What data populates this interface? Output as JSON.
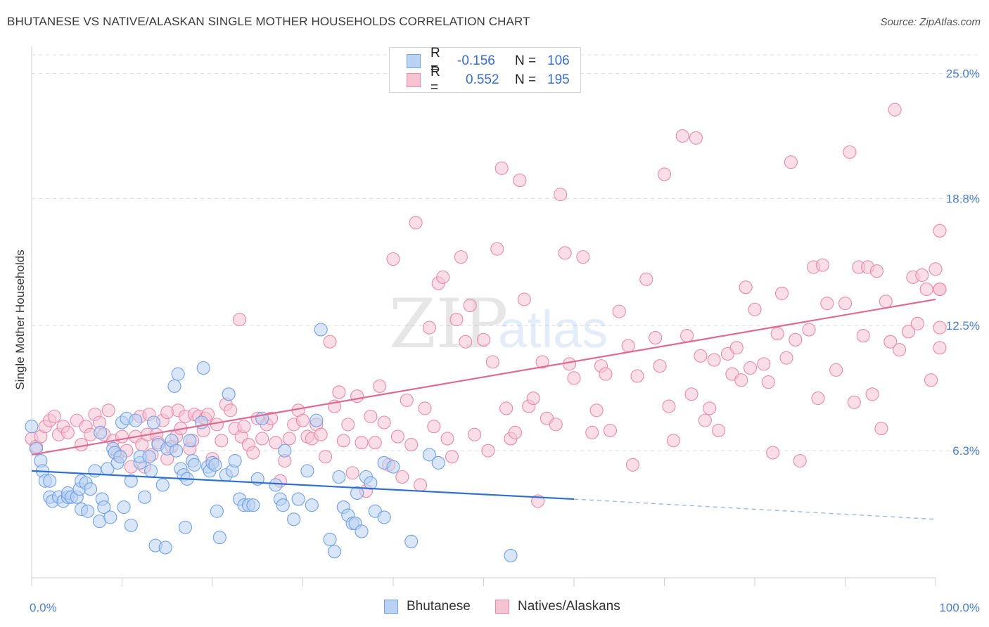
{
  "title": "BHUTANESE VS NATIVE/ALASKAN SINGLE MOTHER HOUSEHOLDS CORRELATION CHART",
  "source": "Source: ZipAtlas.com",
  "watermark": {
    "zip": "ZIP",
    "atlas": "atlas"
  },
  "legend": {
    "rows": [
      {
        "r_label": "R =",
        "r_value": "-0.156",
        "n_label": "N =",
        "n_value": "106",
        "color": "#6fa0e8",
        "fill": "#b9d1f3"
      },
      {
        "r_label": "R =",
        "r_value": "0.552",
        "n_label": "N =",
        "n_value": "195",
        "color": "#e88aa8",
        "fill": "#f6c3d3"
      }
    ]
  },
  "bottom_legend": {
    "series1": "Bhutanese",
    "series2": "Natives/Alaskans"
  },
  "chart_data": {
    "type": "scatter",
    "title": "BHUTANESE VS NATIVE/ALASKAN SINGLE MOTHER HOUSEHOLDS CORRELATION CHART",
    "xlabel": "",
    "ylabel": "Single Mother Households",
    "xlim": [
      0,
      100
    ],
    "ylim": [
      0,
      26.2
    ],
    "x_tick_labels": [
      "0.0%",
      "100.0%"
    ],
    "y_ticks": [
      6.3,
      12.5,
      18.8,
      25.0
    ],
    "y_tick_labels": [
      "6.3%",
      "12.5%",
      "18.8%",
      "25.0%"
    ],
    "grid": true,
    "legend_placement": "top-center",
    "series": [
      {
        "name": "Bhutanese",
        "color": "#6fa0e8",
        "fill": "#b9d1f3",
        "trend": {
          "x0": 0,
          "y0": 5.3,
          "x1": 60,
          "y1": 3.9,
          "dashed_to_x": 100,
          "dashed_to_y": 2.9
        },
        "points": [
          [
            0,
            7.5
          ],
          [
            0.5,
            6.4
          ],
          [
            1,
            5.8
          ],
          [
            1.2,
            5.3
          ],
          [
            1.5,
            4.8
          ],
          [
            2,
            4.8
          ],
          [
            2,
            4.0
          ],
          [
            2.3,
            3.8
          ],
          [
            3,
            4.0
          ],
          [
            3.5,
            3.8
          ],
          [
            4,
            4.0
          ],
          [
            4,
            4.2
          ],
          [
            4.4,
            4.0
          ],
          [
            5,
            4.0
          ],
          [
            5.3,
            4.4
          ],
          [
            5.5,
            3.4
          ],
          [
            5.5,
            4.8
          ],
          [
            6,
            4.7
          ],
          [
            6.2,
            3.3
          ],
          [
            6.5,
            4.4
          ],
          [
            7,
            5.3
          ],
          [
            7.5,
            2.8
          ],
          [
            7.6,
            7.2
          ],
          [
            7.8,
            3.9
          ],
          [
            8,
            3.5
          ],
          [
            8.4,
            5.4
          ],
          [
            8.7,
            3.0
          ],
          [
            9,
            6.4
          ],
          [
            9.2,
            6.2
          ],
          [
            9.5,
            5.7
          ],
          [
            9.8,
            6.0
          ],
          [
            10,
            7.7
          ],
          [
            10.2,
            3.5
          ],
          [
            10.5,
            7.9
          ],
          [
            11,
            2.6
          ],
          [
            11,
            4.8
          ],
          [
            11.5,
            7.8
          ],
          [
            12,
            5.7
          ],
          [
            12,
            6.0
          ],
          [
            12.5,
            4.0
          ],
          [
            13,
            6.0
          ],
          [
            13.2,
            5.3
          ],
          [
            13.5,
            7.7
          ],
          [
            13.7,
            1.6
          ],
          [
            14,
            6.6
          ],
          [
            14.5,
            4.6
          ],
          [
            14.8,
            1.5
          ],
          [
            15,
            6.4
          ],
          [
            15.5,
            6.8
          ],
          [
            15.8,
            9.5
          ],
          [
            16,
            6.3
          ],
          [
            16.2,
            10.1
          ],
          [
            16.5,
            5.4
          ],
          [
            16.8,
            5.1
          ],
          [
            17,
            2.5
          ],
          [
            17.2,
            4.9
          ],
          [
            17.5,
            6.8
          ],
          [
            17.8,
            5.8
          ],
          [
            18,
            5.6
          ],
          [
            18.8,
            7.7
          ],
          [
            19,
            10.4
          ],
          [
            19.5,
            5.5
          ],
          [
            19.7,
            5.3
          ],
          [
            20,
            5.7
          ],
          [
            20.3,
            5.6
          ],
          [
            20.5,
            3.3
          ],
          [
            20.8,
            2.0
          ],
          [
            21.5,
            5.1
          ],
          [
            21.8,
            9.1
          ],
          [
            22.2,
            5.3
          ],
          [
            22.5,
            5.8
          ],
          [
            23,
            3.9
          ],
          [
            23.5,
            3.6
          ],
          [
            24,
            3.6
          ],
          [
            24.5,
            3.6
          ],
          [
            25,
            4.9
          ],
          [
            25.5,
            7.9
          ],
          [
            27,
            4.6
          ],
          [
            27.5,
            3.9
          ],
          [
            27.8,
            3.6
          ],
          [
            28,
            6.3
          ],
          [
            29,
            2.9
          ],
          [
            29.5,
            3.9
          ],
          [
            30.5,
            5.3
          ],
          [
            31,
            3.6
          ],
          [
            31.5,
            7.8
          ],
          [
            32,
            12.3
          ],
          [
            33,
            1.9
          ],
          [
            33.5,
            1.3
          ],
          [
            34,
            5.0
          ],
          [
            34.5,
            3.5
          ],
          [
            35,
            3.1
          ],
          [
            35.5,
            2.7
          ],
          [
            35.8,
            2.7
          ],
          [
            36,
            4.2
          ],
          [
            36.5,
            2.3
          ],
          [
            37,
            5.0
          ],
          [
            37.5,
            4.7
          ],
          [
            38,
            3.3
          ],
          [
            39,
            3.0
          ],
          [
            39,
            5.7
          ],
          [
            40,
            5.5
          ],
          [
            42,
            1.8
          ],
          [
            44,
            6.1
          ],
          [
            45,
            5.7
          ],
          [
            53,
            1.1
          ]
        ]
      },
      {
        "name": "Natives/Alaskans",
        "color": "#e88aa8",
        "fill": "#f6c3d3",
        "trend": {
          "x0": 0,
          "y0": 6.1,
          "x1": 100,
          "y1": 13.8
        },
        "points": [
          [
            0,
            6.9
          ],
          [
            0.5,
            6.5
          ],
          [
            1,
            7.0
          ],
          [
            1.5,
            7.5
          ],
          [
            2,
            7.8
          ],
          [
            2.5,
            8.0
          ],
          [
            3,
            7.1
          ],
          [
            3.5,
            7.5
          ],
          [
            4,
            7.2
          ],
          [
            5,
            7.8
          ],
          [
            5.5,
            6.6
          ],
          [
            6,
            7.5
          ],
          [
            6.5,
            7.1
          ],
          [
            7,
            8.1
          ],
          [
            7.5,
            7.7
          ],
          [
            8,
            7.1
          ],
          [
            8.5,
            8.3
          ],
          [
            9,
            6.8
          ],
          [
            9.5,
            6.1
          ],
          [
            10,
            7.0
          ],
          [
            10.5,
            6.3
          ],
          [
            11,
            5.5
          ],
          [
            11.5,
            7.0
          ],
          [
            12,
            8.0
          ],
          [
            12.2,
            6.6
          ],
          [
            12.5,
            5.5
          ],
          [
            12.8,
            7.1
          ],
          [
            13,
            8.1
          ],
          [
            13.3,
            6.1
          ],
          [
            13.8,
            7.1
          ],
          [
            14,
            6.7
          ],
          [
            14.5,
            7.8
          ],
          [
            15,
            8.2
          ],
          [
            15,
            5.9
          ],
          [
            15.5,
            6.5
          ],
          [
            16,
            7.0
          ],
          [
            16.2,
            8.3
          ],
          [
            16.5,
            7.4
          ],
          [
            17,
            8.0
          ],
          [
            17.5,
            6.4
          ],
          [
            17.8,
            6.8
          ],
          [
            18,
            8.1
          ],
          [
            18.5,
            8.0
          ],
          [
            19,
            7.3
          ],
          [
            19.2,
            7.9
          ],
          [
            19.5,
            8.1
          ],
          [
            20,
            5.9
          ],
          [
            20.5,
            7.6
          ],
          [
            21,
            6.8
          ],
          [
            21.5,
            8.6
          ],
          [
            22,
            8.3
          ],
          [
            22.5,
            7.4
          ],
          [
            23,
            12.8
          ],
          [
            23.2,
            7.0
          ],
          [
            23.5,
            7.5
          ],
          [
            24,
            6.6
          ],
          [
            24.5,
            6.2
          ],
          [
            25,
            7.9
          ],
          [
            25.5,
            6.9
          ],
          [
            26,
            7.6
          ],
          [
            26.5,
            7.9
          ],
          [
            27,
            6.7
          ],
          [
            27.5,
            4.8
          ],
          [
            28,
            5.8
          ],
          [
            28.5,
            6.9
          ],
          [
            29,
            7.6
          ],
          [
            29.5,
            8.3
          ],
          [
            30,
            7.8
          ],
          [
            30.5,
            7.0
          ],
          [
            31,
            6.9
          ],
          [
            31.5,
            7.6
          ],
          [
            32,
            7.1
          ],
          [
            32.5,
            6.0
          ],
          [
            33,
            11.7
          ],
          [
            33.5,
            8.5
          ],
          [
            34,
            9.2
          ],
          [
            34.5,
            6.8
          ],
          [
            35,
            7.6
          ],
          [
            35.5,
            5.2
          ],
          [
            36,
            9.0
          ],
          [
            36.5,
            6.7
          ],
          [
            37,
            4.3
          ],
          [
            37.5,
            8.0
          ],
          [
            38,
            6.7
          ],
          [
            38.5,
            9.5
          ],
          [
            39,
            7.7
          ],
          [
            39.5,
            5.6
          ],
          [
            40,
            15.8
          ],
          [
            40.5,
            7.0
          ],
          [
            41,
            5.0
          ],
          [
            41.5,
            8.8
          ],
          [
            42,
            6.6
          ],
          [
            42.5,
            17.6
          ],
          [
            43,
            4.6
          ],
          [
            43.5,
            8.4
          ],
          [
            44,
            12.4
          ],
          [
            44.5,
            7.5
          ],
          [
            45,
            14.6
          ],
          [
            45.5,
            14.9
          ],
          [
            46,
            6.9
          ],
          [
            46.5,
            6.0
          ],
          [
            47,
            12.8
          ],
          [
            47.5,
            15.9
          ],
          [
            48,
            11.7
          ],
          [
            48.5,
            13.5
          ],
          [
            49,
            7.1
          ],
          [
            50,
            11.8
          ],
          [
            50.5,
            6.3
          ],
          [
            51,
            10.7
          ],
          [
            51.5,
            16.3
          ],
          [
            52,
            20.3
          ],
          [
            52.5,
            8.4
          ],
          [
            53,
            6.9
          ],
          [
            53.5,
            7.2
          ],
          [
            54,
            19.7
          ],
          [
            54.5,
            13.8
          ],
          [
            55,
            8.5
          ],
          [
            55.5,
            8.9
          ],
          [
            56,
            3.8
          ],
          [
            56.5,
            10.7
          ],
          [
            57,
            7.9
          ],
          [
            58,
            7.6
          ],
          [
            58.5,
            19.0
          ],
          [
            59,
            16.1
          ],
          [
            59.5,
            10.6
          ],
          [
            60,
            9.9
          ],
          [
            61,
            15.9
          ],
          [
            62,
            7.2
          ],
          [
            62.5,
            8.3
          ],
          [
            63,
            10.5
          ],
          [
            63.5,
            10.1
          ],
          [
            64,
            7.3
          ],
          [
            65,
            13.2
          ],
          [
            66,
            11.5
          ],
          [
            66.5,
            5.6
          ],
          [
            67,
            10.0
          ],
          [
            68,
            14.8
          ],
          [
            69,
            11.9
          ],
          [
            69.5,
            10.5
          ],
          [
            70,
            20.0
          ],
          [
            70.5,
            8.5
          ],
          [
            71,
            6.8
          ],
          [
            72,
            21.9
          ],
          [
            72.5,
            12.0
          ],
          [
            73,
            9.1
          ],
          [
            73.5,
            21.8
          ],
          [
            74,
            11.0
          ],
          [
            74.5,
            7.8
          ],
          [
            75,
            8.4
          ],
          [
            75.5,
            10.8
          ],
          [
            76,
            7.3
          ],
          [
            77,
            11.1
          ],
          [
            77.5,
            10.1
          ],
          [
            78,
            11.4
          ],
          [
            78.5,
            9.8
          ],
          [
            79,
            14.4
          ],
          [
            79.5,
            10.4
          ],
          [
            80,
            13.3
          ],
          [
            81,
            10.6
          ],
          [
            81.5,
            9.7
          ],
          [
            82,
            6.2
          ],
          [
            82.5,
            12.1
          ],
          [
            83,
            14.1
          ],
          [
            83.5,
            10.9
          ],
          [
            84,
            20.6
          ],
          [
            84.5,
            11.8
          ],
          [
            85,
            5.8
          ],
          [
            86,
            12.3
          ],
          [
            86.5,
            15.4
          ],
          [
            87,
            8.9
          ],
          [
            87.5,
            15.5
          ],
          [
            88,
            13.6
          ],
          [
            89,
            10.3
          ],
          [
            90,
            13.6
          ],
          [
            90.5,
            21.1
          ],
          [
            91,
            8.7
          ],
          [
            91.5,
            15.4
          ],
          [
            92,
            12.0
          ],
          [
            92.5,
            15.4
          ],
          [
            93,
            9.1
          ],
          [
            93.5,
            15.2
          ],
          [
            94,
            7.4
          ],
          [
            94.5,
            13.7
          ],
          [
            95,
            11.7
          ],
          [
            95.5,
            23.2
          ],
          [
            96,
            11.3
          ],
          [
            97,
            12.2
          ],
          [
            97.5,
            14.9
          ],
          [
            98,
            12.6
          ],
          [
            98.5,
            15.0
          ],
          [
            99,
            14.3
          ],
          [
            99.5,
            9.8
          ],
          [
            100,
            15.3
          ],
          [
            100.5,
            14.3
          ],
          [
            101,
            12.4
          ],
          [
            101.5,
            14.3
          ],
          [
            102,
            11.4
          ],
          [
            102.5,
            17.2
          ]
        ]
      }
    ]
  }
}
